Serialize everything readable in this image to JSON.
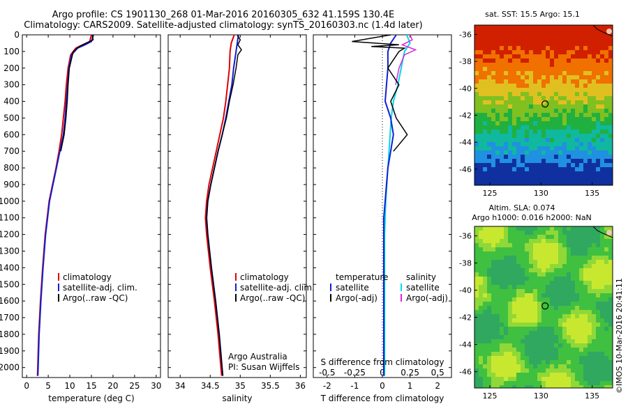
{
  "header": {
    "title_line1": "Argo profile: CS 1901130_268 01-Mar-2016 20160305_632 41.159S 130.4E",
    "title_line2": "Climatology: CARS2009. Satellite-adjusted climatology: synTS_20160303.nc (1.4d later)"
  },
  "maps": {
    "sst_title": "sat. SST: 15.5 Argo: 15.1",
    "sla_title_line1": "Altim. SLA: 0.074",
    "sla_title_line2": "Argo h1000: 0.016 h2000: NaN",
    "lat_ticks": [
      "-36",
      "-38",
      "-40",
      "-42",
      "-44",
      "-46"
    ],
    "lon_ticks": [
      "125",
      "130",
      "135"
    ],
    "lat_values": [
      -36,
      -38,
      -40,
      -42,
      -44,
      -46
    ],
    "lon_values": [
      125,
      130,
      135
    ],
    "lon_range": [
      123.5,
      137
    ],
    "lat_range": [
      -47.2,
      -35.3
    ],
    "argo_position": {
      "lat": -41.159,
      "lon": 130.4
    }
  },
  "credit": "©IMOS 10-Mar-2016 20:41:11",
  "colors": {
    "climatology": "#e00000",
    "satellite": "#1020d0",
    "argo": "#000000",
    "sal_satellite": "#00d8e8",
    "sal_argo": "#e020e0"
  },
  "chart_data": [
    {
      "type": "line",
      "panel": "temperature",
      "xlabel": "temperature (deg C)",
      "ylabel": "",
      "xlim": [
        -1,
        31
      ],
      "ylim": [
        2060,
        0
      ],
      "xticks": [
        "0",
        "5",
        "10",
        "15",
        "20",
        "25",
        "30"
      ],
      "yticks": [
        "0",
        "100",
        "200",
        "300",
        "400",
        "500",
        "600",
        "700",
        "800",
        "900",
        "1000",
        "1100",
        "1200",
        "1300",
        "1400",
        "1500",
        "1600",
        "1700",
        "1800",
        "1900",
        "2000"
      ],
      "legend": [
        "climatology",
        "satellite-adj. clim.",
        "Argo(..raw -QC)"
      ],
      "series": [
        {
          "name": "climatology",
          "depth": [
            0,
            40,
            60,
            80,
            120,
            200,
            300,
            400,
            500,
            600,
            700,
            800,
            900,
            1000,
            1200,
            1400,
            1600,
            1800,
            2050
          ],
          "values": [
            15.0,
            14.6,
            13.0,
            11.4,
            10.2,
            9.6,
            9.2,
            8.9,
            8.5,
            8.1,
            7.5,
            6.8,
            6.0,
            5.2,
            4.3,
            3.7,
            3.2,
            2.8,
            2.5
          ]
        },
        {
          "name": "satellite-adj. clim.",
          "depth": [
            0,
            40,
            60,
            80,
            120,
            200,
            300,
            400,
            500,
            600,
            700,
            800,
            900,
            1000,
            1200,
            1400,
            1600,
            1800,
            2050
          ],
          "values": [
            15.5,
            15.0,
            13.5,
            11.8,
            10.4,
            9.8,
            9.5,
            9.2,
            8.9,
            8.5,
            7.7,
            6.9,
            6.1,
            5.3,
            4.4,
            3.8,
            3.3,
            2.9,
            2.6
          ]
        },
        {
          "name": "Argo(..raw -QC)",
          "depth": [
            0,
            30,
            50,
            70,
            100,
            200,
            300,
            400,
            500,
            600,
            700
          ],
          "values": [
            15.2,
            15.4,
            13.8,
            12.2,
            10.8,
            9.9,
            9.6,
            9.4,
            9.1,
            8.7,
            7.9
          ]
        }
      ]
    },
    {
      "type": "line",
      "panel": "salinity",
      "xlabel": "salinity",
      "ylabel": "",
      "xlim": [
        33.8,
        36.1
      ],
      "ylim": [
        2060,
        0
      ],
      "xticks": [
        "34",
        "34.5",
        "35",
        "35.5",
        "36"
      ],
      "legend": [
        "climatology",
        "satellite-adj. clim.",
        "Argo(..raw -QC)"
      ],
      "annotation": [
        "Argo Australia",
        "PI: Susan Wijffels"
      ],
      "series": [
        {
          "name": "climatology",
          "depth": [
            0,
            50,
            100,
            200,
            300,
            400,
            500,
            600,
            700,
            800,
            900,
            1000,
            1100,
            1200,
            1400,
            1600,
            1800,
            2050
          ],
          "values": [
            34.9,
            34.85,
            34.83,
            34.82,
            34.79,
            34.76,
            34.72,
            34.66,
            34.6,
            34.54,
            34.48,
            34.44,
            34.42,
            34.44,
            34.5,
            34.57,
            34.63,
            34.69
          ]
        },
        {
          "name": "satellite-adj. clim.",
          "depth": [
            0,
            50,
            100,
            200,
            300,
            400,
            500,
            600,
            700,
            800,
            900,
            1000,
            1100,
            1200,
            1400,
            1600,
            1800,
            2050
          ],
          "values": [
            34.97,
            34.95,
            34.93,
            34.89,
            34.86,
            34.81,
            34.76,
            34.7,
            34.63,
            34.57,
            34.51,
            34.46,
            34.44,
            34.46,
            34.52,
            34.59,
            34.65,
            34.71
          ]
        },
        {
          "name": "Argo(..raw -QC)",
          "depth": [
            0,
            30,
            60,
            90,
            120,
            200,
            300,
            400,
            500,
            600,
            700,
            800,
            900,
            1000,
            1100,
            1200,
            1400,
            1600,
            1800,
            2050
          ],
          "values": [
            34.95,
            35.0,
            34.96,
            35.02,
            34.96,
            34.93,
            34.88,
            34.82,
            34.77,
            34.7,
            34.63,
            34.57,
            34.51,
            34.46,
            34.44,
            34.46,
            34.52,
            34.59,
            34.65,
            34.71
          ]
        }
      ]
    },
    {
      "type": "line",
      "panel": "difference",
      "xlabel": "T difference from climatology",
      "xlabel_top": "S difference from climatology",
      "xlim": [
        -2.5,
        2.5
      ],
      "ylim": [
        2060,
        0
      ],
      "xticks": [
        "-2",
        "-1",
        "0",
        "1",
        "2"
      ],
      "xticks_s": [
        "-0.5",
        "-0.25",
        "0",
        "0.25",
        "0.5"
      ],
      "legend_temperature": [
        "temperature",
        "satellite",
        "Argo(-adj)"
      ],
      "legend_salinity": [
        "salinity",
        "satellite",
        "Argo(-adj)"
      ],
      "series": [
        {
          "name": "temperature satellite",
          "depth": [
            0,
            50,
            100,
            200,
            300,
            400,
            500,
            600,
            700,
            800,
            900,
            1000,
            1100,
            1200,
            1400,
            1600,
            1800,
            2050
          ],
          "values": [
            0.5,
            0.3,
            0.2,
            0.2,
            0.15,
            0.1,
            0.3,
            0.4,
            0.3,
            0.2,
            0.15,
            0.1,
            0.05,
            0.05,
            0.05,
            0.05,
            0.05,
            0.05
          ]
        },
        {
          "name": "temperature Argo(-adj)",
          "depth": [
            0,
            40,
            60,
            70,
            80,
            100,
            150,
            200,
            300,
            400,
            500,
            600,
            700
          ],
          "values": [
            0.3,
            -1.1,
            0.6,
            -0.4,
            0.8,
            0.6,
            0.4,
            0.2,
            0.6,
            0.3,
            0.5,
            0.9,
            0.4
          ]
        },
        {
          "name": "salinity satellite",
          "depth": [
            0,
            50,
            100,
            200,
            300,
            400,
            500,
            600,
            700,
            800,
            1000,
            1200,
            1400,
            1600,
            1800,
            2050
          ],
          "values": [
            0.22,
            0.25,
            0.2,
            0.17,
            0.14,
            0.1,
            0.08,
            0.07,
            0.06,
            0.05,
            0.03,
            0.02,
            0.02,
            0.02,
            0.02,
            0.02
          ]
        },
        {
          "name": "salinity Argo(-adj)",
          "depth": [
            0,
            30,
            60,
            90,
            120,
            200,
            300
          ],
          "values": [
            0.25,
            0.27,
            0.18,
            0.3,
            0.2,
            0.15,
            0.12
          ]
        }
      ]
    }
  ]
}
